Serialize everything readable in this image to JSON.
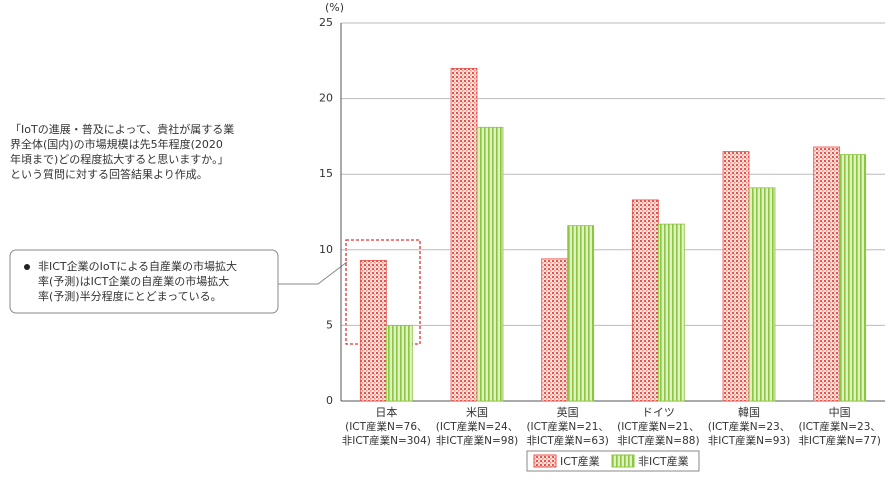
{
  "chart_data": {
    "type": "bar",
    "y_label": "(%)",
    "categories": [
      "日本",
      "米国",
      "英国",
      "ドイツ",
      "韓国",
      "中国"
    ],
    "category_details": [
      [
        "(ICT産業N=76、",
        "非ICT産業N=304)"
      ],
      [
        "(ICT産業N=24、",
        "非ICT産業N=98)"
      ],
      [
        "(ICT産業N=21、",
        "非ICT産業N=63)"
      ],
      [
        "(ICT産業N=21、",
        "非ICT産業N=88)"
      ],
      [
        "(ICT産業N=23、",
        "非ICT産業N=93)"
      ],
      [
        "(ICT産業N=23、",
        "非ICT産業N=77)"
      ]
    ],
    "series": [
      {
        "name": "ICT産業",
        "color": "#e8534a",
        "values": [
          9.3,
          22.0,
          9.4,
          13.3,
          16.5,
          16.8
        ]
      },
      {
        "name": "非ICT産業",
        "color": "#8cc63f",
        "values": [
          5.0,
          18.1,
          11.6,
          11.7,
          14.1,
          16.3
        ]
      }
    ],
    "ylim": [
      0,
      25
    ],
    "yticks": [
      0,
      5,
      10,
      15,
      20,
      25
    ],
    "grid": true,
    "note": [
      "「IoTの進展・普及によって、貴社が属する業",
      "界全体(国内)の市場規模は先5年程度(2020",
      "年頃まで)どの程度拡大すると思いますか。」",
      "という質問に対する回答結果より作成。"
    ],
    "callout": [
      "非ICT企業のIoTによる自産業の市場拡大",
      "率(予測)はICT企業の自産業の市場拡大",
      "率(予測)半分程度にとどまっている。"
    ]
  }
}
